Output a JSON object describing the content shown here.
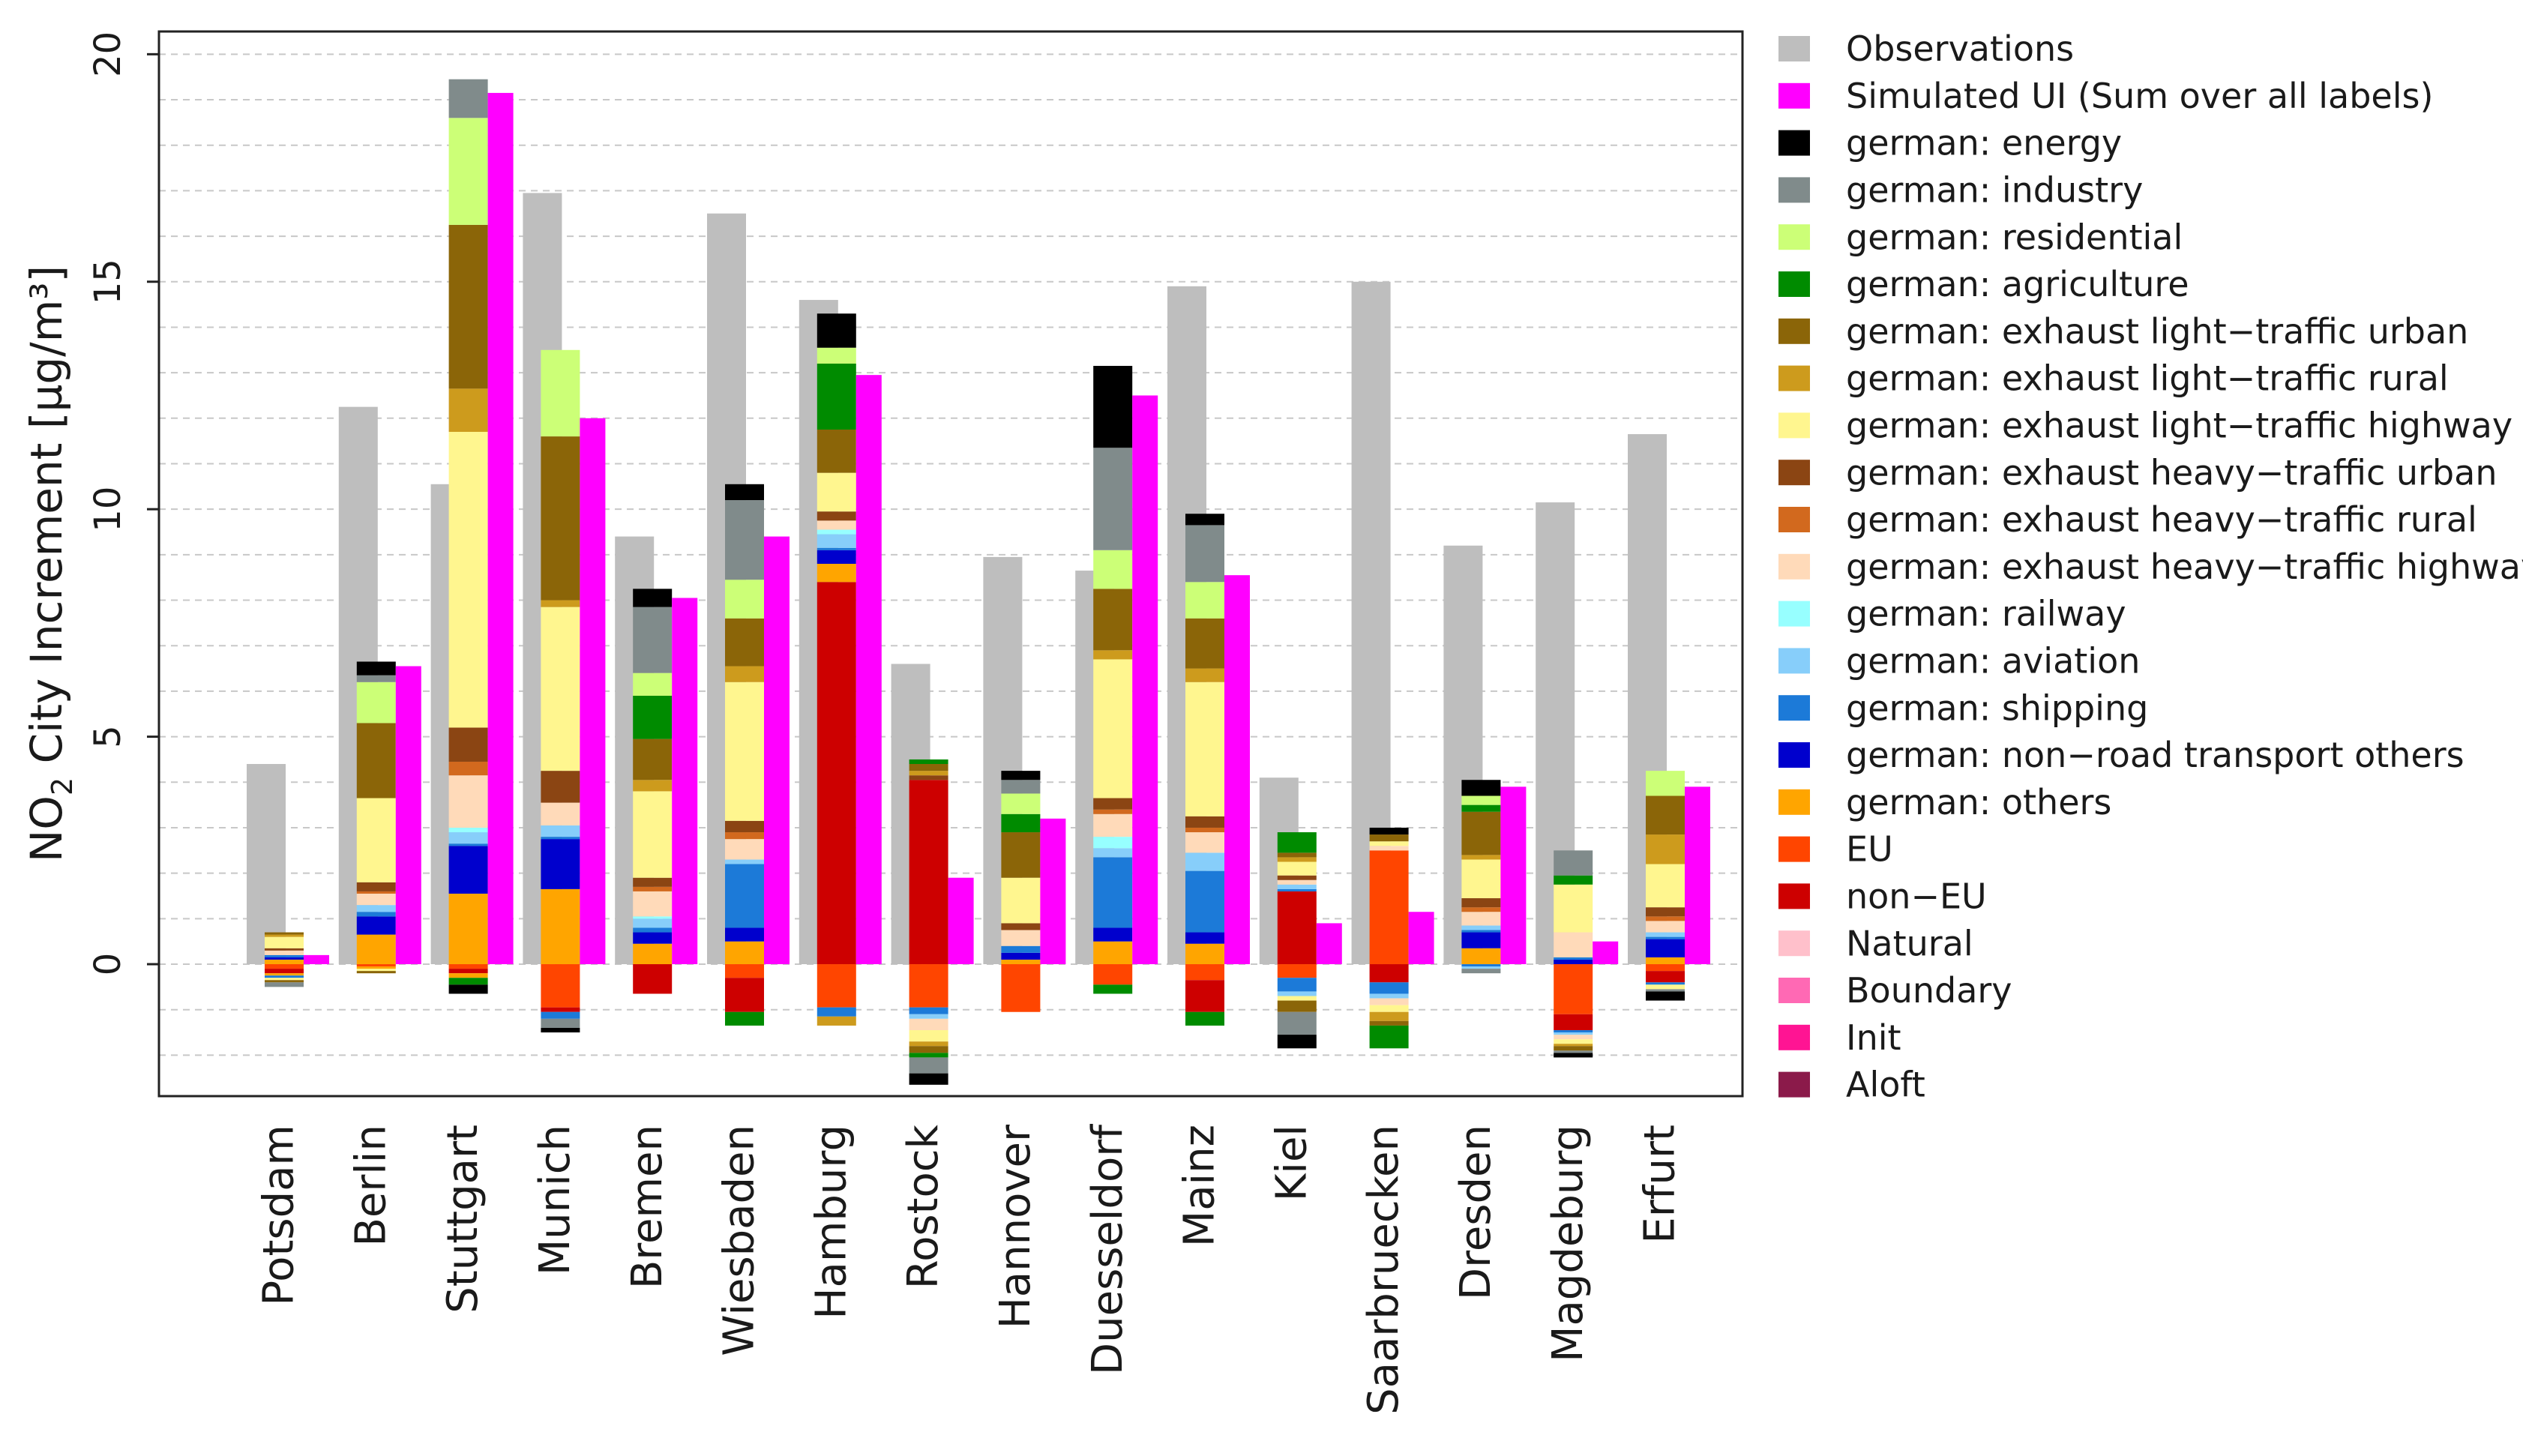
{
  "chart_data": {
    "type": "bar",
    "ylabel_main": "NO",
    "ylabel_sub": "2",
    "ylabel_rest": " City Increment [µg/m³]",
    "ylim": [
      -2.9,
      20.5
    ],
    "yticks": [
      0,
      5,
      10,
      15,
      20
    ],
    "grid": true,
    "legend_position": "right",
    "categories": [
      "Potsdam",
      "Berlin",
      "Stuttgart",
      "Munich",
      "Bremen",
      "Wiesbaden",
      "Hamburg",
      "Rostock",
      "Hannover",
      "Duesseldorf",
      "Mainz",
      "Kiel",
      "Saarbruecken",
      "Dresden",
      "Magdeburg",
      "Erfurt"
    ],
    "legend": [
      {
        "label": "Observations",
        "color": "#bebebe"
      },
      {
        "label": "Simulated UI (Sum over all labels)",
        "color": "#ff00ff"
      },
      {
        "label": "german: energy",
        "color": "#000000"
      },
      {
        "label": "german: industry",
        "color": "#808b8b"
      },
      {
        "label": "german: residential",
        "color": "#ccff77"
      },
      {
        "label": "german: agriculture",
        "color": "#008b00"
      },
      {
        "label": "german: exhaust light−traffic urban",
        "color": "#8b6508"
      },
      {
        "label": "german: exhaust light−traffic rural",
        "color": "#cd9b1d"
      },
      {
        "label": "german: exhaust light−traffic highway",
        "color": "#fff68f"
      },
      {
        "label": "german: exhaust heavy−traffic urban",
        "color": "#8b4513"
      },
      {
        "label": "german: exhaust heavy−traffic rural",
        "color": "#d2691e"
      },
      {
        "label": "german: exhaust heavy−traffic highway",
        "color": "#ffdab9"
      },
      {
        "label": "german: railway",
        "color": "#97ffff"
      },
      {
        "label": "german: aviation",
        "color": "#87cefa"
      },
      {
        "label": "german: shipping",
        "color": "#1c7ad8"
      },
      {
        "label": "german: non−road transport others",
        "color": "#0000cd"
      },
      {
        "label": "german: others",
        "color": "#ffa500"
      },
      {
        "label": "EU",
        "color": "#ff4500"
      },
      {
        "label": "non−EU",
        "color": "#cd0000"
      },
      {
        "label": "Natural",
        "color": "#ffc0cb"
      },
      {
        "label": "Boundary",
        "color": "#ff69b4"
      },
      {
        "label": "Init",
        "color": "#ff1493"
      },
      {
        "label": "Aloft",
        "color": "#8b1a4a"
      }
    ],
    "observations": [
      4.4,
      12.25,
      10.55,
      16.95,
      9.4,
      16.5,
      14.6,
      6.6,
      8.95,
      8.65,
      14.9,
      4.1,
      15.0,
      9.2,
      10.15,
      11.65
    ],
    "simulated_ui": [
      0.2,
      6.55,
      19.15,
      12.0,
      8.05,
      9.4,
      12.95,
      1.9,
      3.2,
      12.5,
      8.55,
      0.9,
      1.15,
      3.9,
      0.5,
      3.9
    ],
    "stack_order": [
      "EU",
      "non−EU",
      "german: others",
      "german: non−road transport others",
      "german: shipping",
      "german: aviation",
      "german: railway",
      "german: exhaust heavy−traffic highway",
      "german: exhaust heavy−traffic rural",
      "german: exhaust heavy−traffic urban",
      "german: exhaust light−traffic highway",
      "german: exhaust light−traffic rural",
      "german: exhaust light−traffic urban",
      "german: agriculture",
      "german: residential",
      "german: industry",
      "german: energy"
    ],
    "contributions": [
      {
        "city": "Potsdam",
        "positive": {
          "german: others": 0.1,
          "german: non−road transport others": 0.05,
          "german: shipping": 0.05,
          "german: exhaust heavy−traffic highway": 0.1,
          "german: exhaust heavy−traffic urban": 0.05,
          "german: exhaust light−traffic highway": 0.25,
          "german: exhaust light−traffic rural": 0.05,
          "german: exhaust light−traffic urban": 0.05
        },
        "negative": {
          "EU": 0.1,
          "non−EU": 0.1,
          "german: others": 0.05,
          "german: shipping": 0.05,
          "german: exhaust light−traffic highway": 0.05,
          "german: exhaust light−traffic urban": 0.05,
          "german: industry": 0.1
        }
      },
      {
        "city": "Berlin",
        "positive": {
          "german: others": 0.65,
          "german: non−road transport others": 0.4,
          "german: shipping": 0.1,
          "german: aviation": 0.15,
          "german: exhaust heavy−traffic highway": 0.25,
          "german: exhaust heavy−traffic rural": 0.05,
          "german: exhaust heavy−traffic urban": 0.2,
          "german: exhaust light−traffic highway": 1.85,
          "german: exhaust light−traffic urban": 1.65,
          "german: residential": 0.9,
          "german: industry": 0.15,
          "german: energy": 0.3
        },
        "negative": {
          "EU": 0.05,
          "german: others": 0.05,
          "german: exhaust light−traffic highway": 0.05,
          "german: exhaust light−traffic urban": 0.05
        }
      },
      {
        "city": "Stuttgart",
        "positive": {
          "german: others": 1.55,
          "german: non−road transport others": 1.05,
          "german: shipping": 0.05,
          "german: aviation": 0.25,
          "german: railway": 0.1,
          "german: exhaust heavy−traffic highway": 1.15,
          "german: exhaust heavy−traffic rural": 0.3,
          "german: exhaust heavy−traffic urban": 0.75,
          "german: exhaust light−traffic highway": 6.5,
          "german: exhaust light−traffic rural": 0.95,
          "german: exhaust light−traffic urban": 3.6,
          "german: residential": 2.35,
          "german: industry": 0.85
        },
        "negative": {
          "EU": 0.1,
          "non−EU": 0.1,
          "german: others": 0.1,
          "german: agriculture": 0.15,
          "german: energy": 0.2
        }
      },
      {
        "city": "Munich",
        "positive": {
          "german: others": 1.65,
          "german: non−road transport others": 1.1,
          "german: shipping": 0.05,
          "german: aviation": 0.25,
          "german: exhaust heavy−traffic highway": 0.5,
          "german: exhaust heavy−traffic urban": 0.7,
          "german: exhaust light−traffic highway": 3.6,
          "german: exhaust light−traffic rural": 0.15,
          "german: exhaust light−traffic urban": 3.6,
          "german: residential": 1.9
        },
        "negative": {
          "non−EU": 0.1,
          "EU": 0.95,
          "german: shipping": 0.15,
          "german: industry": 0.2,
          "german: energy": 0.1
        }
      },
      {
        "city": "Bremen",
        "positive": {
          "german: others": 0.45,
          "german: non−road transport others": 0.25,
          "german: shipping": 0.1,
          "german: aviation": 0.2,
          "german: railway": 0.05,
          "german: exhaust heavy−traffic highway": 0.55,
          "german: exhaust heavy−traffic rural": 0.1,
          "german: exhaust heavy−traffic urban": 0.2,
          "german: exhaust light−traffic highway": 1.9,
          "german: exhaust light−traffic rural": 0.25,
          "german: exhaust light−traffic urban": 0.9,
          "german: agriculture": 0.95,
          "german: residential": 0.5,
          "german: industry": 1.45,
          "german: energy": 0.4
        },
        "negative": {
          "non−EU": 0.65
        }
      },
      {
        "city": "Wiesbaden",
        "positive": {
          "german: others": 0.5,
          "german: non−road transport others": 0.3,
          "german: shipping": 1.4,
          "german: aviation": 0.1,
          "german: exhaust heavy−traffic highway": 0.45,
          "german: exhaust heavy−traffic rural": 0.15,
          "german: exhaust heavy−traffic urban": 0.25,
          "german: exhaust light−traffic highway": 3.05,
          "german: exhaust light−traffic rural": 0.35,
          "german: exhaust light−traffic urban": 1.05,
          "german: residential": 0.85,
          "german: industry": 1.75,
          "german: energy": 0.35
        },
        "negative": {
          "non−EU": 0.75,
          "EU": 0.3,
          "german: agriculture": 0.3
        }
      },
      {
        "city": "Hamburg",
        "positive": {
          "non−EU": 8.4,
          "german: others": 0.4,
          "german: non−road transport others": 0.3,
          "german: shipping": 0.05,
          "german: aviation": 0.3,
          "german: railway": 0.1,
          "german: exhaust heavy−traffic highway": 0.2,
          "german: exhaust heavy−traffic urban": 0.2,
          "german: exhaust light−traffic highway": 0.85,
          "german: exhaust light−traffic urban": 0.95,
          "german: agriculture": 1.45,
          "german: residential": 0.35,
          "german: energy": 0.75
        },
        "negative": {
          "EU": 0.95,
          "german: shipping": 0.2,
          "german: exhaust light−traffic rural": 0.2
        }
      },
      {
        "city": "Rostock",
        "positive": {
          "non−EU": 4.05,
          "german: exhaust heavy−traffic urban": 0.1,
          "german: exhaust light−traffic rural": 0.1,
          "german: exhaust light−traffic urban": 0.15,
          "german: agriculture": 0.1
        },
        "negative": {
          "EU": 0.95,
          "german: shipping": 0.15,
          "german: aviation": 0.1,
          "german: exhaust heavy−traffic highway": 0.25,
          "german: exhaust light−traffic highway": 0.25,
          "german: exhaust light−traffic rural": 0.1,
          "german: exhaust light−traffic urban": 0.15,
          "german: agriculture": 0.1,
          "german: industry": 0.35,
          "german: energy": 0.25
        }
      },
      {
        "city": "Hannover",
        "positive": {
          "german: others": 0.1,
          "german: non−road transport others": 0.15,
          "german: shipping": 0.15,
          "german: exhaust heavy−traffic highway": 0.35,
          "german: exhaust heavy−traffic urban": 0.15,
          "german: exhaust light−traffic highway": 1.0,
          "german: exhaust light−traffic urban": 1.0,
          "german: agriculture": 0.4,
          "german: residential": 0.45,
          "german: industry": 0.3,
          "german: energy": 0.2
        },
        "negative": {
          "EU": 1.05
        }
      },
      {
        "city": "Duesseldorf",
        "positive": {
          "german: others": 0.5,
          "german: non−road transport others": 0.3,
          "german: shipping": 1.55,
          "german: aviation": 0.2,
          "german: railway": 0.25,
          "german: exhaust heavy−traffic highway": 0.5,
          "german: exhaust heavy−traffic rural": 0.1,
          "german: exhaust heavy−traffic urban": 0.25,
          "german: exhaust light−traffic highway": 3.05,
          "german: exhaust light−traffic rural": 0.2,
          "german: exhaust light−traffic urban": 1.35,
          "german: residential": 0.85,
          "german: industry": 2.25,
          "german: energy": 1.8
        },
        "negative": {
          "EU": 0.45,
          "german: agriculture": 0.2
        }
      },
      {
        "city": "Mainz",
        "positive": {
          "german: others": 0.45,
          "german: non−road transport others": 0.25,
          "german: shipping": 1.35,
          "german: aviation": 0.4,
          "german: exhaust heavy−traffic highway": 0.45,
          "german: exhaust heavy−traffic rural": 0.1,
          "german: exhaust heavy−traffic urban": 0.25,
          "german: exhaust light−traffic highway": 2.95,
          "german: exhaust light−traffic rural": 0.3,
          "german: exhaust light−traffic urban": 1.1,
          "german: residential": 0.8,
          "german: industry": 1.25,
          "german: energy": 0.25
        },
        "negative": {
          "non−EU": 0.7,
          "EU": 0.35,
          "german: agriculture": 0.3
        }
      },
      {
        "city": "Kiel",
        "positive": {
          "non−EU": 1.6,
          "german: shipping": 0.05,
          "german: aviation": 0.1,
          "german: exhaust heavy−traffic highway": 0.1,
          "german: exhaust heavy−traffic urban": 0.1,
          "german: exhaust light−traffic highway": 0.3,
          "german: exhaust light−traffic rural": 0.1,
          "german: exhaust light−traffic urban": 0.1,
          "german: agriculture": 0.45
        },
        "negative": {
          "EU": 0.3,
          "german: shipping": 0.3,
          "german: aviation": 0.1,
          "german: exhaust light−traffic highway": 0.1,
          "german: exhaust light−traffic urban": 0.25,
          "german: industry": 0.5,
          "german: energy": 0.3
        }
      },
      {
        "city": "Saarbruecken",
        "positive": {
          "EU": 2.5,
          "german: exhaust heavy−traffic highway": 0.1,
          "german: exhaust light−traffic highway": 0.1,
          "german: exhaust light−traffic urban": 0.15,
          "german: energy": 0.15
        },
        "negative": {
          "non−EU": 0.4,
          "german: shipping": 0.25,
          "german: aviation": 0.1,
          "german: exhaust heavy−traffic highway": 0.15,
          "german: exhaust light−traffic highway": 0.15,
          "german: exhaust light−traffic rural": 0.2,
          "german: exhaust light−traffic urban": 0.1,
          "german: agriculture": 0.5
        }
      },
      {
        "city": "Dresden",
        "positive": {
          "german: others": 0.35,
          "german: non−road transport others": 0.35,
          "german: shipping": 0.05,
          "german: aviation": 0.1,
          "german: exhaust heavy−traffic highway": 0.3,
          "german: exhaust heavy−traffic rural": 0.1,
          "german: exhaust heavy−traffic urban": 0.2,
          "german: exhaust light−traffic highway": 0.85,
          "german: exhaust light−traffic rural": 0.1,
          "german: exhaust light−traffic urban": 0.95,
          "german: agriculture": 0.15,
          "german: residential": 0.2,
          "german: energy": 0.35
        },
        "negative": {
          "german: shipping": 0.05,
          "german: aviation": 0.05,
          "german: industry": 0.1
        }
      },
      {
        "city": "Magdeburg",
        "positive": {
          "german: non−road transport others": 0.1,
          "german: shipping": 0.05,
          "german: exhaust heavy−traffic highway": 0.55,
          "german: exhaust light−traffic highway": 1.05,
          "german: agriculture": 0.2,
          "german: industry": 0.55
        },
        "negative": {
          "non−EU": 0.35,
          "EU": 1.1,
          "german: shipping": 0.05,
          "german: aviation": 0.05,
          "german: exhaust heavy−traffic highway": 0.1,
          "german: exhaust light−traffic highway": 0.1,
          "german: exhaust light−traffic rural": 0.05,
          "german: exhaust light−traffic urban": 0.1,
          "german: industry": 0.05,
          "german: energy": 0.1
        }
      },
      {
        "city": "Erfurt",
        "positive": {
          "german: others": 0.15,
          "german: non−road transport others": 0.4,
          "german: shipping": 0.05,
          "german: aviation": 0.1,
          "german: exhaust heavy−traffic highway": 0.25,
          "german: exhaust heavy−traffic rural": 0.1,
          "german: exhaust heavy−traffic urban": 0.2,
          "german: exhaust light−traffic highway": 0.95,
          "german: exhaust light−traffic rural": 0.65,
          "german: exhaust light−traffic urban": 0.85,
          "german: residential": 0.55
        },
        "negative": {
          "EU": 0.15,
          "non−EU": 0.25,
          "german: shipping": 0.05,
          "german: exhaust light−traffic highway": 0.1,
          "german: industry": 0.05,
          "german: energy": 0.2
        }
      }
    ]
  }
}
